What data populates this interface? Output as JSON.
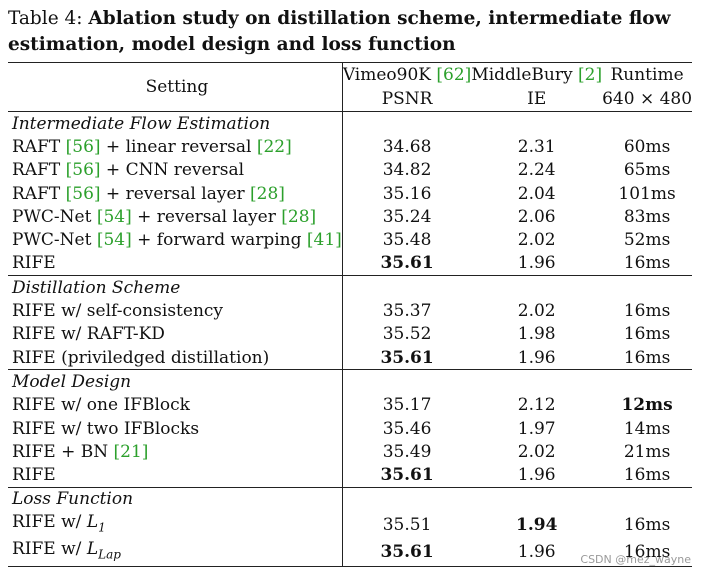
{
  "caption": {
    "label": "Table 4:",
    "title": "Ablation study on distillation scheme, intermediate flow estimation, model design and loss function"
  },
  "header": {
    "setting": "Setting",
    "col2_top": "Vimeo90K",
    "col2_ref": "[62]",
    "col2_bottom": "PSNR",
    "col3_top": "MiddleBury",
    "col3_ref": "[2]",
    "col3_bottom": "IE",
    "col4_top": "Runtime",
    "col4_bottom": "640 × 480"
  },
  "sections": [
    {
      "title": "Intermediate Flow Estimation",
      "rows": [
        {
          "pre": "RAFT ",
          "ref1": "[56]",
          "mid": " + linear reversal ",
          "ref2": "[22]",
          "post": "",
          "psnr": "34.68",
          "ie": "2.31",
          "runtime": "60ms",
          "bold": []
        },
        {
          "pre": "RAFT ",
          "ref1": "[56]",
          "mid": " + CNN reversal",
          "ref2": "",
          "post": "",
          "psnr": "34.82",
          "ie": "2.24",
          "runtime": "65ms",
          "bold": []
        },
        {
          "pre": "RAFT ",
          "ref1": "[56]",
          "mid": " + reversal layer ",
          "ref2": "[28]",
          "post": "",
          "psnr": "35.16",
          "ie": "2.04",
          "runtime": "101ms",
          "bold": []
        },
        {
          "pre": "PWC-Net ",
          "ref1": "[54]",
          "mid": " + reversal layer ",
          "ref2": "[28]",
          "post": "",
          "psnr": "35.24",
          "ie": "2.06",
          "runtime": "83ms",
          "bold": []
        },
        {
          "pre": "PWC-Net ",
          "ref1": "[54]",
          "mid": " + forward warping ",
          "ref2": "[41]",
          "post": "",
          "psnr": "35.48",
          "ie": "2.02",
          "runtime": "52ms",
          "bold": []
        },
        {
          "pre": "RIFE",
          "ref1": "",
          "mid": "",
          "ref2": "",
          "post": "",
          "psnr": "35.61",
          "ie": "1.96",
          "runtime": "16ms",
          "bold": [
            "psnr"
          ]
        }
      ]
    },
    {
      "title": "Distillation Scheme",
      "rows": [
        {
          "pre": "RIFE w/ self-consistency",
          "ref1": "",
          "mid": "",
          "ref2": "",
          "post": "",
          "psnr": "35.37",
          "ie": "2.02",
          "runtime": "16ms",
          "bold": []
        },
        {
          "pre": "RIFE w/ RAFT-KD",
          "ref1": "",
          "mid": "",
          "ref2": "",
          "post": "",
          "psnr": "35.52",
          "ie": "1.98",
          "runtime": "16ms",
          "bold": []
        },
        {
          "pre": "RIFE (priviledged distillation)",
          "ref1": "",
          "mid": "",
          "ref2": "",
          "post": "",
          "psnr": "35.61",
          "ie": "1.96",
          "runtime": "16ms",
          "bold": [
            "psnr"
          ]
        }
      ]
    },
    {
      "title": "Model Design",
      "rows": [
        {
          "pre": "RIFE w/ one IFBlock",
          "ref1": "",
          "mid": "",
          "ref2": "",
          "post": "",
          "psnr": "35.17",
          "ie": "2.12",
          "runtime": "12ms",
          "bold": [
            "runtime"
          ]
        },
        {
          "pre": "RIFE w/ two IFBlocks",
          "ref1": "",
          "mid": "",
          "ref2": "",
          "post": "",
          "psnr": "35.46",
          "ie": "1.97",
          "runtime": "14ms",
          "bold": []
        },
        {
          "pre": "RIFE + BN ",
          "ref1": "[21]",
          "mid": "",
          "ref2": "",
          "post": "",
          "psnr": "35.49",
          "ie": "2.02",
          "runtime": "21ms",
          "bold": []
        },
        {
          "pre": "RIFE",
          "ref1": "",
          "mid": "",
          "ref2": "",
          "post": "",
          "psnr": "35.61",
          "ie": "1.96",
          "runtime": "16ms",
          "bold": [
            "psnr"
          ]
        }
      ]
    },
    {
      "title": "Loss Function",
      "rows": [
        {
          "pre": "RIFE w/ ",
          "ref1": "",
          "mid": "",
          "ref2": "",
          "post": "",
          "loss_var": "L",
          "loss_sub": "1",
          "psnr": "35.51",
          "ie": "1.94",
          "runtime": "16ms",
          "bold": [
            "ie"
          ]
        },
        {
          "pre": "RIFE w/ ",
          "ref1": "",
          "mid": "",
          "ref2": "",
          "post": "",
          "loss_var": "L",
          "loss_sub": "Lap",
          "psnr": "35.61",
          "ie": "1.96",
          "runtime": "16ms",
          "bold": [
            "psnr"
          ]
        }
      ]
    }
  ],
  "watermark": "CSDN @mez_wayne"
}
